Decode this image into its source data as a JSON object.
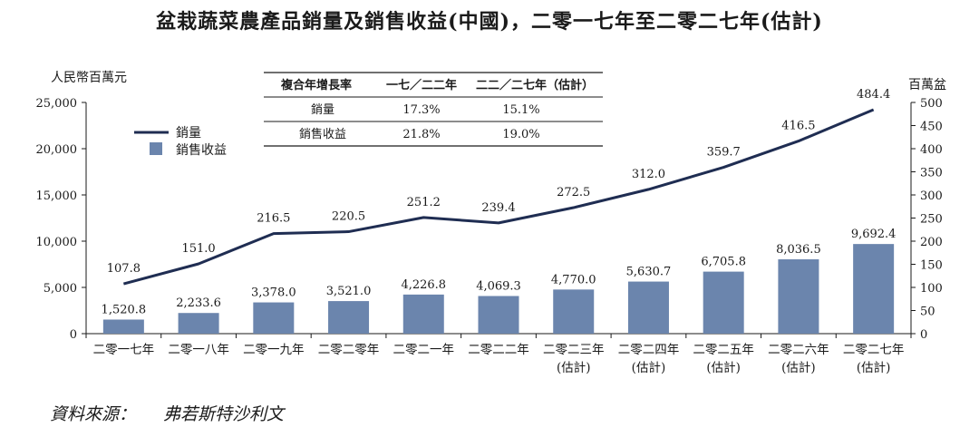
{
  "title": "盆栽蔬菜農產品銷量及銷售收益(中國)，二零一七年至二零二七年(估計)",
  "source": {
    "label": "資料來源：",
    "name": "弗若斯特沙利文"
  },
  "colors": {
    "bar": "#6b85ad",
    "line": "#1f2d52"
  },
  "chart_data": {
    "type": "bar",
    "categories": [
      [
        "二零一七年"
      ],
      [
        "二零一八年"
      ],
      [
        "二零一九年"
      ],
      [
        "二零二零年"
      ],
      [
        "二零二一年"
      ],
      [
        "二零二二年"
      ],
      [
        "二零二三年",
        "(估計)"
      ],
      [
        "二零二四年",
        "(估計)"
      ],
      [
        "二零二五年",
        "(估計)"
      ],
      [
        "二零二六年",
        "(估計)"
      ],
      [
        "二零二七年",
        "(估計)"
      ]
    ],
    "series": [
      {
        "name": "銷售收益",
        "type": "bar",
        "axis": "left",
        "values": [
          1520.8,
          2233.6,
          3378.0,
          3521.0,
          4226.8,
          4069.3,
          4770.0,
          5630.7,
          6705.8,
          8036.5,
          9692.4
        ],
        "labels": [
          "1,520.8",
          "2,233.6",
          "3,378.0",
          "3,521.0",
          "4,226.8",
          "4,069.3",
          "4,770.0",
          "5,630.7",
          "6,705.8",
          "8,036.5",
          "9,692.4"
        ]
      },
      {
        "name": "銷量",
        "type": "line",
        "axis": "right",
        "values": [
          107.8,
          151.0,
          216.5,
          220.5,
          251.2,
          239.4,
          272.5,
          312.0,
          359.7,
          416.5,
          484.4
        ],
        "labels": [
          "107.8",
          "151.0",
          "216.5",
          "220.5",
          "251.2",
          "239.4",
          "272.5",
          "312.0",
          "359.7",
          "416.5",
          "484.4"
        ]
      }
    ],
    "y_left": {
      "label": "人民幣百萬元",
      "min": 0,
      "max": 25000,
      "ticks": [
        0,
        5000,
        10000,
        15000,
        20000,
        25000
      ],
      "tick_labels": [
        "0",
        "5,000",
        "10,000",
        "15,000",
        "20,000",
        "25,000"
      ]
    },
    "y_right": {
      "label": "百萬盆",
      "min": 0,
      "max": 500,
      "ticks": [
        0,
        50,
        100,
        150,
        200,
        250,
        300,
        350,
        400,
        450,
        500
      ],
      "tick_labels": [
        "0",
        "50",
        "100",
        "150",
        "200",
        "250",
        "300",
        "350",
        "400",
        "450",
        "500"
      ]
    },
    "legend_position": "top-left",
    "grid": false,
    "cagr_table": {
      "header": [
        "複合年增長率",
        "一七／二二年",
        "二二／二七年（估計）"
      ],
      "rows": [
        [
          "銷量",
          "17.3%",
          "15.1%"
        ],
        [
          "銷售收益",
          "21.8%",
          "19.0%"
        ]
      ]
    }
  }
}
